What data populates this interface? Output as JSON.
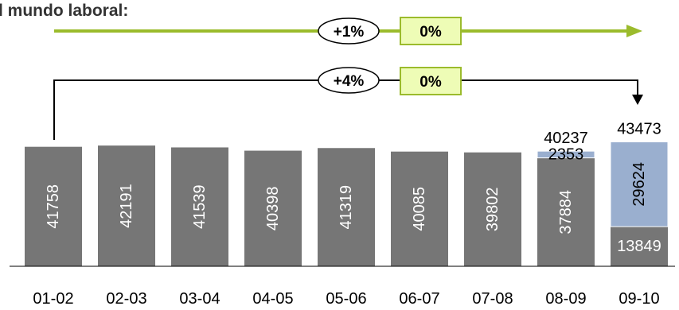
{
  "title": "l mundo laboral:",
  "colors": {
    "gray": "#767676",
    "blue": "#9aafcf",
    "green": "#9bbb2c",
    "badge": "#eefcb6",
    "dark": "#000000"
  },
  "arrows": [
    {
      "name": "green-trend-arrow",
      "pct_label": "+1%",
      "box_label": "0%"
    },
    {
      "name": "black-trend-arrow",
      "pct_label": "+4%",
      "box_label": "0%"
    }
  ],
  "chart_data": {
    "type": "bar",
    "stacked": true,
    "categories": [
      "01-02",
      "02-03",
      "03-04",
      "04-05",
      "05-06",
      "06-07",
      "07-08",
      "08-09",
      "09-10"
    ],
    "series": [
      {
        "values": [
          41758,
          42191,
          41539,
          40398,
          41319,
          40085,
          39802,
          37884,
          13849
        ]
      },
      {
        "values": [
          0,
          0,
          0,
          0,
          0,
          0,
          0,
          2353,
          29624
        ]
      }
    ],
    "totals": [
      null,
      null,
      null,
      null,
      null,
      null,
      null,
      "40237",
      "43473"
    ],
    "ylim": [
      0,
      45000
    ]
  }
}
